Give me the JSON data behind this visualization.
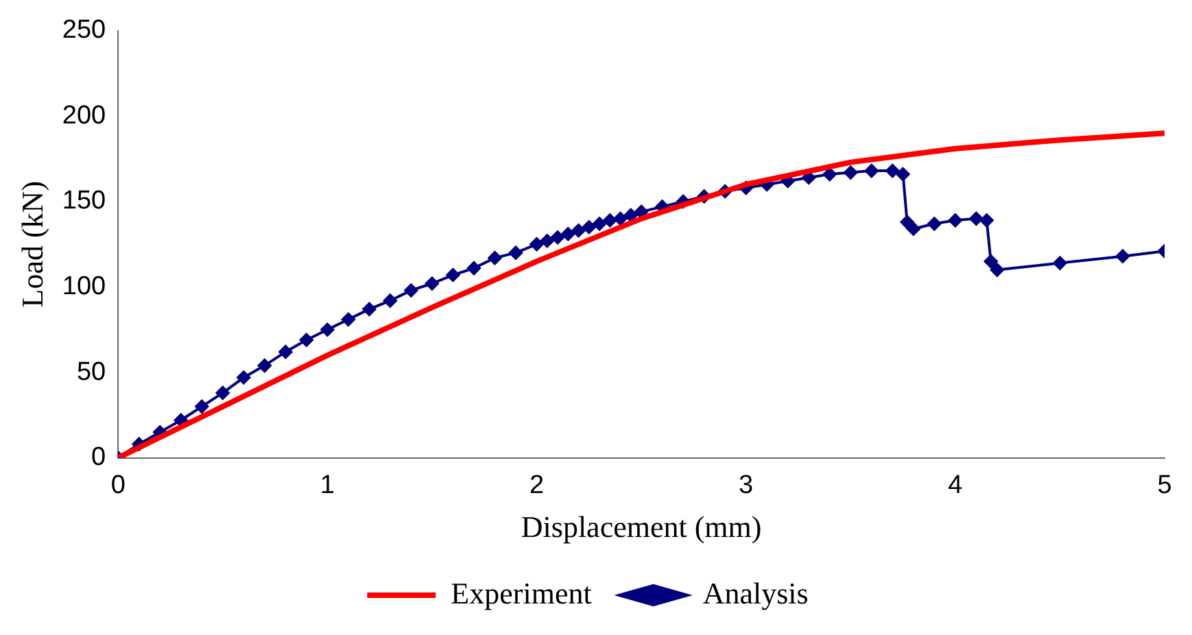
{
  "chart_data": {
    "type": "line",
    "xlabel": "Displacement (mm)",
    "ylabel": "Load (kN)",
    "xlim": [
      0,
      5
    ],
    "xticks": [
      0,
      1,
      2,
      3,
      4,
      5
    ],
    "ylim": [
      0,
      250
    ],
    "yticks": [
      0,
      50,
      100,
      150,
      200,
      250
    ],
    "grid": false,
    "legend": "bottom",
    "series": [
      {
        "name": "Experiment",
        "color": "#ff0000",
        "marker": "none",
        "x": [
          0,
          0.5,
          1,
          1.5,
          2,
          2.5,
          3,
          3.5,
          4,
          4.5,
          5
        ],
        "values": [
          0,
          30,
          60,
          88,
          115,
          140,
          160,
          173,
          181,
          186,
          190
        ]
      },
      {
        "name": "Analysis",
        "color": "#000080",
        "marker": "diamond",
        "x": [
          0,
          0.1,
          0.2,
          0.3,
          0.4,
          0.5,
          0.6,
          0.7,
          0.8,
          0.9,
          1,
          1.1,
          1.2,
          1.3,
          1.4,
          1.5,
          1.6,
          1.7,
          1.8,
          1.9,
          2,
          2.05,
          2.1,
          2.15,
          2.2,
          2.25,
          2.3,
          2.35,
          2.4,
          2.45,
          2.5,
          2.6,
          2.7,
          2.8,
          2.9,
          3,
          3.1,
          3.2,
          3.3,
          3.4,
          3.5,
          3.6,
          3.7,
          3.75,
          3.77,
          3.8,
          3.9,
          4,
          4.1,
          4.15,
          4.17,
          4.2,
          4.5,
          4.8,
          5
        ],
        "values": [
          0,
          8,
          15,
          22,
          30,
          38,
          47,
          54,
          62,
          69,
          75,
          81,
          87,
          92,
          98,
          102,
          107,
          111,
          117,
          120,
          125,
          127,
          129,
          131,
          133,
          135,
          137,
          139,
          140,
          142,
          144,
          147,
          150,
          153,
          156,
          158,
          160,
          162,
          164,
          166,
          167,
          168,
          168,
          166,
          138,
          134,
          137,
          139,
          140,
          139,
          115,
          110,
          114,
          118,
          121
        ]
      }
    ]
  }
}
